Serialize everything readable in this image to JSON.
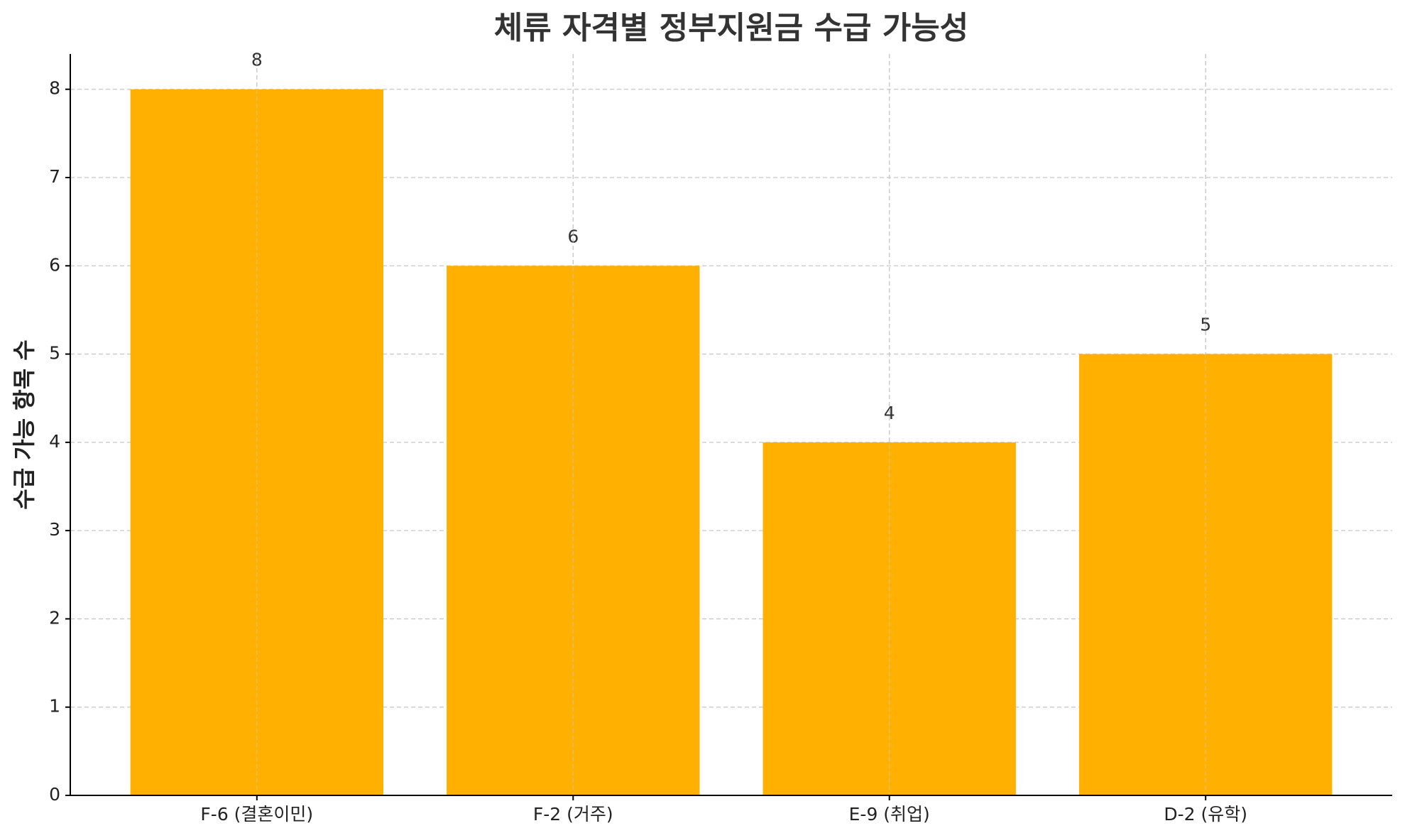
{
  "chart_data": {
    "type": "bar",
    "title": "체류 자격별 정부지원금 수급 가능성",
    "y_label": "수급 가능 항목 수",
    "categories": [
      "F-6 (결혼이민)",
      "F-2 (거주)",
      "E-9 (취업)",
      "D-2 (유학)"
    ],
    "values": [
      8,
      6,
      4,
      5
    ],
    "color": "#ffb000",
    "ylim": [
      0,
      8.4
    ],
    "yticks": [
      0,
      1,
      2,
      3,
      4,
      5,
      6,
      7,
      8
    ],
    "grid": true
  }
}
